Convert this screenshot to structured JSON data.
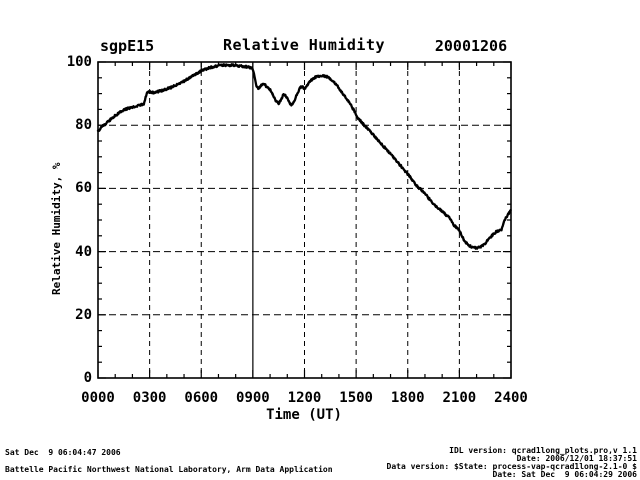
{
  "header": {
    "site_label": "sgpE15",
    "title": "Relative Humidity",
    "date_label": "20001206"
  },
  "axes": {
    "x": {
      "label": "Time (UT)",
      "ticks": [
        "0000",
        "0300",
        "0600",
        "0900",
        "1200",
        "1500",
        "1800",
        "2100",
        "2400"
      ],
      "tick_hours": [
        0,
        3,
        6,
        9,
        12,
        15,
        18,
        21,
        24
      ],
      "minor_step_hours": 1
    },
    "y": {
      "label": "Relative Humidity, %",
      "ticks": [
        "0",
        "20",
        "40",
        "60",
        "80",
        "100"
      ],
      "tick_values": [
        0,
        20,
        40,
        60,
        80,
        100
      ],
      "minor_step": 5
    }
  },
  "grid": {
    "dashed_x_hours": [
      3,
      6,
      12,
      15,
      18,
      21
    ],
    "solid_x_hours": [
      9
    ],
    "dashed_y_values": [
      20,
      40,
      60,
      80
    ]
  },
  "footer": {
    "left_line1": "Sat Dec  9 06:04:47 2006",
    "left_line2": "Battelle Pacific Northwest National Laboratory, Arm Data Application",
    "right_lines": [
      "IDL version: qcrad1long_plots.pro,v 1.1",
      "Date: 2006/12/01 18:37:51",
      "Data version: $State: process-vap-qcrad1long-2.1-0 $",
      "Date: Sat Dec  9 06:04:29 2006"
    ]
  },
  "colors": {
    "foreground": "#000000",
    "background": "#ffffff"
  },
  "chart_data": {
    "type": "line",
    "title": "Relative Humidity",
    "site": "sgpE15",
    "date": "20001206",
    "xlabel": "Time (UT)",
    "ylabel": "Relative Humidity, %",
    "xlim": [
      0,
      24
    ],
    "ylim": [
      0,
      100
    ],
    "x_tick_hours": [
      0,
      3,
      6,
      9,
      12,
      15,
      18,
      21,
      24
    ],
    "y_tick_values": [
      0,
      20,
      40,
      60,
      80,
      100
    ],
    "grid": "dashed, with solid vertical line at 0900 UT",
    "legend": "none",
    "points": [
      [
        0.0,
        78.0
      ],
      [
        0.3,
        79.8
      ],
      [
        0.6,
        81.2
      ],
      [
        0.9,
        82.6
      ],
      [
        1.2,
        83.8
      ],
      [
        1.5,
        84.8
      ],
      [
        1.8,
        85.4
      ],
      [
        2.1,
        85.9
      ],
      [
        2.4,
        86.3
      ],
      [
        2.65,
        86.6
      ],
      [
        2.75,
        88.5
      ],
      [
        2.85,
        90.2
      ],
      [
        3.0,
        90.5
      ],
      [
        3.2,
        90.3
      ],
      [
        3.4,
        90.5
      ],
      [
        3.6,
        90.8
      ],
      [
        3.8,
        91.1
      ],
      [
        4.0,
        91.5
      ],
      [
        4.3,
        92.1
      ],
      [
        4.6,
        92.8
      ],
      [
        4.9,
        93.6
      ],
      [
        5.2,
        94.6
      ],
      [
        5.5,
        95.6
      ],
      [
        5.8,
        96.6
      ],
      [
        6.1,
        97.4
      ],
      [
        6.4,
        98.0
      ],
      [
        6.7,
        98.5
      ],
      [
        7.0,
        98.8
      ],
      [
        7.3,
        99.0
      ],
      [
        7.6,
        99.0
      ],
      [
        7.9,
        98.9
      ],
      [
        8.2,
        98.8
      ],
      [
        8.5,
        98.6
      ],
      [
        8.8,
        98.3
      ],
      [
        9.0,
        97.8
      ],
      [
        9.1,
        95.0
      ],
      [
        9.2,
        92.2
      ],
      [
        9.35,
        91.6
      ],
      [
        9.5,
        92.6
      ],
      [
        9.65,
        93.0
      ],
      [
        9.8,
        92.2
      ],
      [
        10.0,
        91.2
      ],
      [
        10.2,
        89.2
      ],
      [
        10.35,
        87.6
      ],
      [
        10.5,
        86.8
      ],
      [
        10.65,
        88.4
      ],
      [
        10.8,
        89.8
      ],
      [
        10.95,
        89.0
      ],
      [
        11.1,
        87.4
      ],
      [
        11.25,
        86.3
      ],
      [
        11.4,
        87.6
      ],
      [
        11.55,
        89.6
      ],
      [
        11.7,
        91.4
      ],
      [
        11.85,
        92.4
      ],
      [
        12.0,
        91.6
      ],
      [
        12.15,
        92.6
      ],
      [
        12.3,
        93.8
      ],
      [
        12.5,
        94.8
      ],
      [
        12.7,
        95.3
      ],
      [
        12.9,
        95.6
      ],
      [
        13.1,
        95.6
      ],
      [
        13.3,
        95.3
      ],
      [
        13.5,
        94.7
      ],
      [
        13.7,
        93.8
      ],
      [
        13.9,
        92.6
      ],
      [
        14.1,
        91.0
      ],
      [
        14.35,
        89.2
      ],
      [
        14.6,
        87.2
      ],
      [
        14.85,
        84.9
      ],
      [
        15.1,
        82.4
      ],
      [
        15.35,
        80.7
      ],
      [
        15.6,
        79.3
      ],
      [
        15.85,
        77.9
      ],
      [
        16.1,
        76.3
      ],
      [
        16.35,
        74.8
      ],
      [
        16.6,
        73.3
      ],
      [
        16.85,
        71.8
      ],
      [
        17.1,
        70.3
      ],
      [
        17.35,
        68.7
      ],
      [
        17.6,
        67.1
      ],
      [
        17.85,
        65.5
      ],
      [
        18.1,
        63.8
      ],
      [
        18.35,
        62.0
      ],
      [
        18.6,
        60.4
      ],
      [
        18.85,
        59.2
      ],
      [
        19.1,
        57.6
      ],
      [
        19.35,
        56.0
      ],
      [
        19.6,
        54.6
      ],
      [
        19.85,
        53.4
      ],
      [
        20.1,
        52.2
      ],
      [
        20.35,
        51.0
      ],
      [
        20.5,
        50.3
      ],
      [
        20.6,
        48.9
      ],
      [
        20.8,
        47.8
      ],
      [
        21.0,
        46.6
      ],
      [
        21.15,
        45.0
      ],
      [
        21.3,
        43.4
      ],
      [
        21.5,
        42.2
      ],
      [
        21.7,
        41.5
      ],
      [
        21.9,
        41.2
      ],
      [
        22.1,
        41.2
      ],
      [
        22.3,
        41.6
      ],
      [
        22.5,
        42.6
      ],
      [
        22.7,
        43.9
      ],
      [
        22.9,
        45.1
      ],
      [
        23.1,
        46.1
      ],
      [
        23.3,
        46.7
      ],
      [
        23.45,
        47.0
      ],
      [
        23.55,
        49.0
      ],
      [
        23.7,
        50.6
      ],
      [
        23.85,
        52.0
      ],
      [
        24.0,
        53.5
      ]
    ]
  }
}
